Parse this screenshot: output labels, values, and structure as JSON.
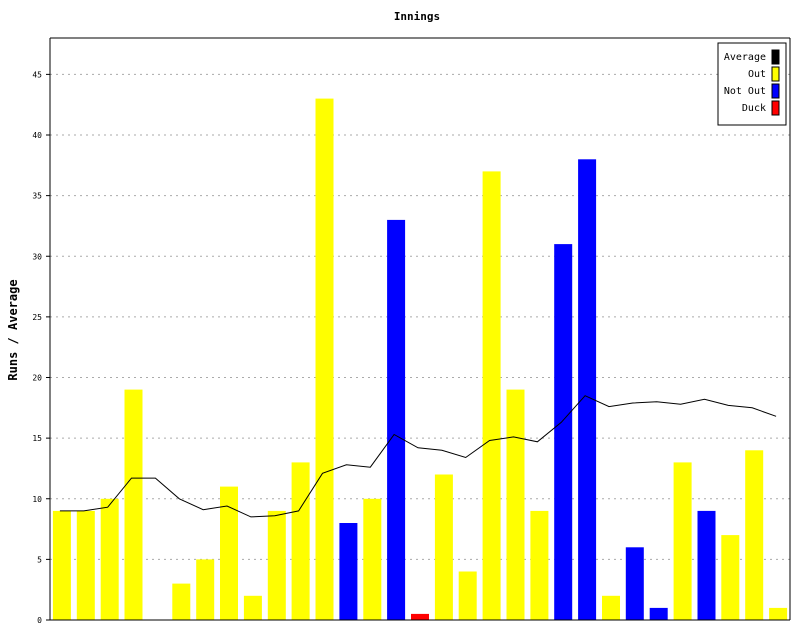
{
  "chart_data": {
    "type": "bar",
    "title": "Innings",
    "xlabel": "",
    "ylabel": "Runs / Average",
    "ylim": [
      0,
      48
    ],
    "yticks": [
      0,
      5,
      10,
      15,
      20,
      25,
      30,
      35,
      40,
      45
    ],
    "grid": true,
    "legend_position": "top-right",
    "legend": [
      {
        "name": "Average",
        "color": "#000000"
      },
      {
        "name": "Out",
        "color": "#ffff00"
      },
      {
        "name": "Not Out",
        "color": "#0000ff"
      },
      {
        "name": "Duck",
        "color": "#ff0000"
      }
    ],
    "innings": [
      {
        "runs": 9,
        "status": "Out"
      },
      {
        "runs": 9,
        "status": "Out"
      },
      {
        "runs": 10,
        "status": "Out"
      },
      {
        "runs": 19,
        "status": "Out"
      },
      {
        "runs": 0,
        "status": "Out"
      },
      {
        "runs": 3,
        "status": "Out"
      },
      {
        "runs": 5,
        "status": "Out"
      },
      {
        "runs": 11,
        "status": "Out"
      },
      {
        "runs": 2,
        "status": "Out"
      },
      {
        "runs": 9,
        "status": "Out"
      },
      {
        "runs": 13,
        "status": "Out"
      },
      {
        "runs": 43,
        "status": "Out"
      },
      {
        "runs": 8,
        "status": "Not Out"
      },
      {
        "runs": 10,
        "status": "Out"
      },
      {
        "runs": 33,
        "status": "Not Out"
      },
      {
        "runs": 0.5,
        "status": "Duck"
      },
      {
        "runs": 12,
        "status": "Out"
      },
      {
        "runs": 4,
        "status": "Out"
      },
      {
        "runs": 37,
        "status": "Out"
      },
      {
        "runs": 19,
        "status": "Out"
      },
      {
        "runs": 9,
        "status": "Out"
      },
      {
        "runs": 31,
        "status": "Not Out"
      },
      {
        "runs": 38,
        "status": "Not Out"
      },
      {
        "runs": 2,
        "status": "Out"
      },
      {
        "runs": 6,
        "status": "Not Out"
      },
      {
        "runs": 1,
        "status": "Not Out"
      },
      {
        "runs": 13,
        "status": "Out"
      },
      {
        "runs": 9,
        "status": "Not Out"
      },
      {
        "runs": 7,
        "status": "Out"
      },
      {
        "runs": 14,
        "status": "Out"
      },
      {
        "runs": 1,
        "status": "Out"
      }
    ],
    "average": [
      9,
      9,
      9.3,
      11.7,
      11.7,
      10,
      9.1,
      9.4,
      8.5,
      8.6,
      9,
      12.1,
      12.8,
      12.6,
      15.3,
      14.2,
      14,
      13.4,
      14.8,
      15.1,
      14.7,
      16.3,
      18.5,
      17.6,
      17.9,
      18,
      17.8,
      18.2,
      17.7,
      17.5,
      16.8
    ]
  }
}
